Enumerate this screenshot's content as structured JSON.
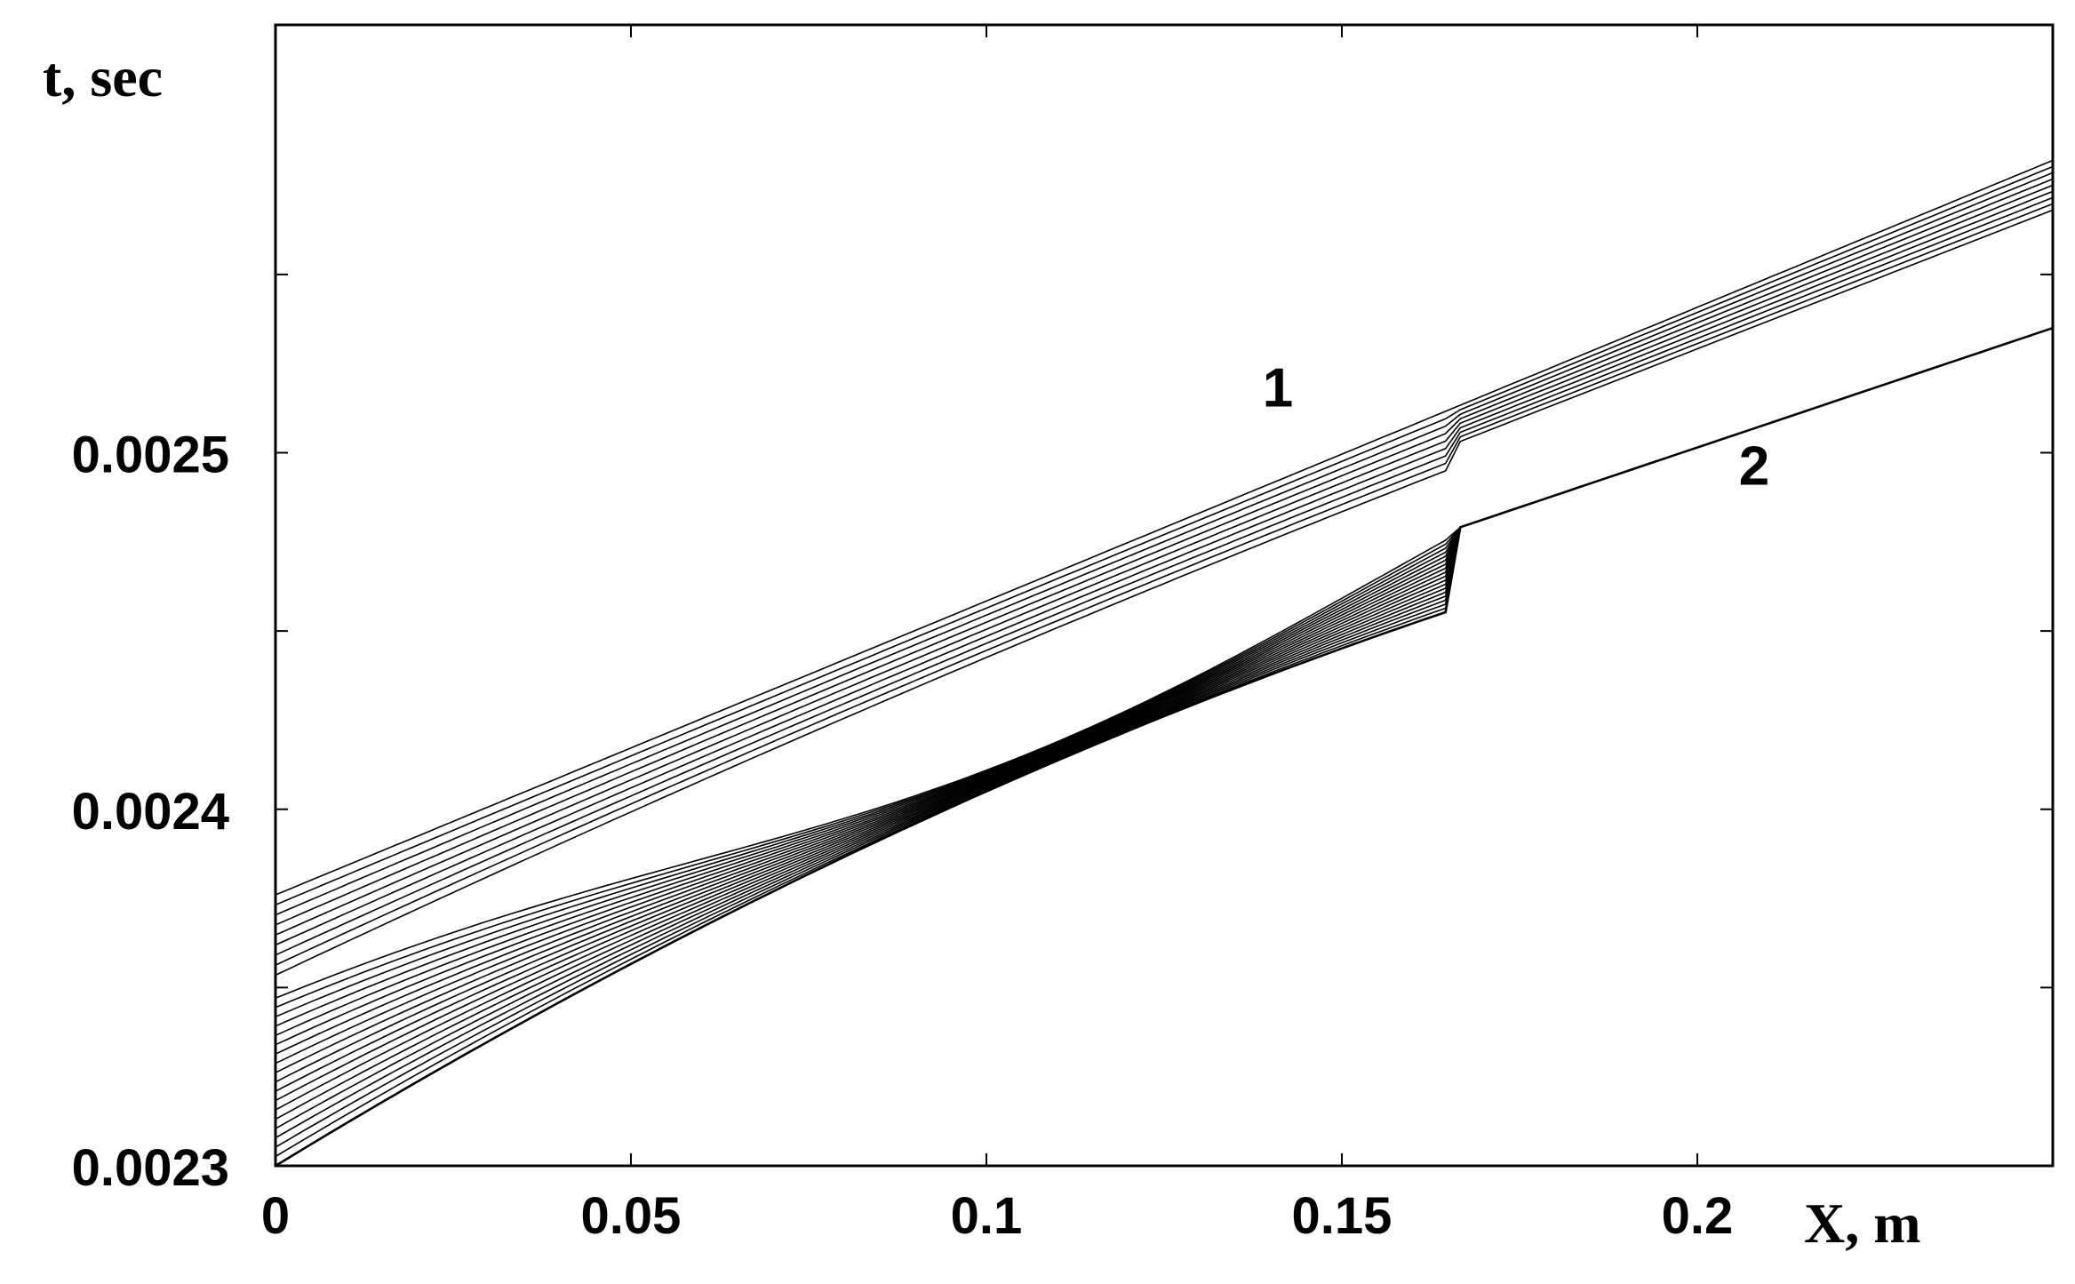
{
  "chart_data": {
    "type": "line",
    "title": "",
    "xlabel": "X, m",
    "ylabel": "t, sec",
    "xlim": [
      0,
      0.25
    ],
    "ylim": [
      0.0023,
      0.00262
    ],
    "grid": false,
    "x_ticks": [
      {
        "value": 0,
        "label": "0"
      },
      {
        "value": 0.05,
        "label": "0.05"
      },
      {
        "value": 0.1,
        "label": "0.1"
      },
      {
        "value": 0.15,
        "label": "0.15"
      },
      {
        "value": 0.2,
        "label": "0.2"
      }
    ],
    "y_ticks": [
      {
        "value": 0.0023,
        "label": "0.0023"
      },
      {
        "value": 0.0024,
        "label": "0.0024"
      },
      {
        "value": 0.0025,
        "label": "0.0025"
      }
    ],
    "y_minor_ticks": [
      0.00235,
      0.00245,
      0.00255
    ],
    "family": {
      "count": 28,
      "x_start": 0,
      "x_end": 0.25,
      "top_line": {
        "name": "1",
        "start_y": 0.002376,
        "end_y": 0.002582
      },
      "bottom_line": {
        "name": "2",
        "start_y": 0.0023,
        "end_y": 0.002535
      },
      "merge_x_bottom": 0.165,
      "merge_x_top": 0.085
    },
    "annotations": [
      {
        "text": "1",
        "x": 0.141,
        "y": 0.002513
      },
      {
        "text": "2",
        "x": 0.208,
        "y": 0.002491
      }
    ]
  }
}
